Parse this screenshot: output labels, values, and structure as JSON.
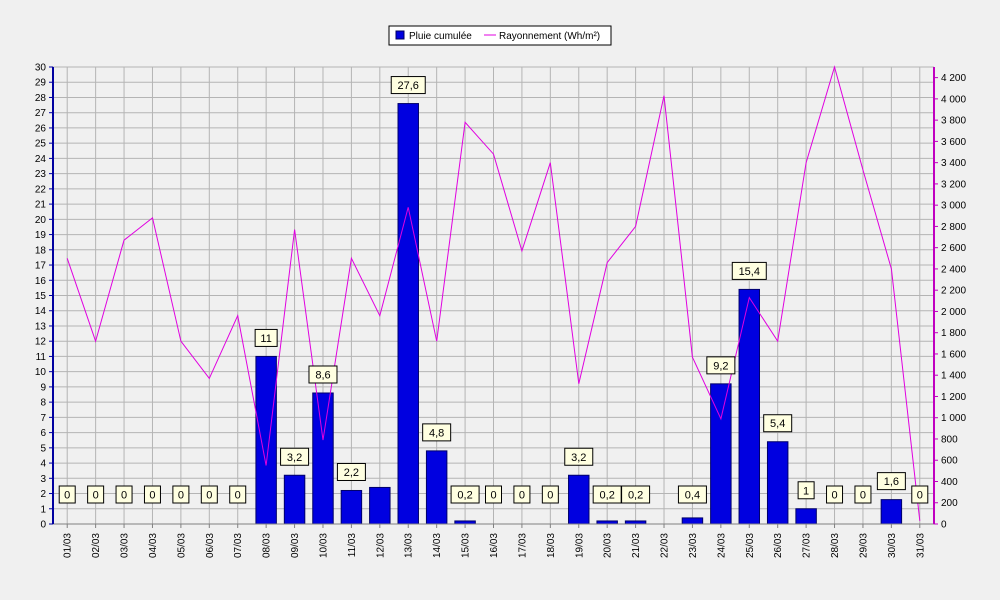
{
  "chart_data": {
    "type": "bar",
    "categories": [
      "01/03",
      "02/03",
      "03/03",
      "04/03",
      "05/03",
      "06/03",
      "07/03",
      "08/03",
      "09/03",
      "10/03",
      "11/03",
      "12/03",
      "13/03",
      "14/03",
      "15/03",
      "16/03",
      "17/03",
      "18/03",
      "19/03",
      "20/03",
      "21/03",
      "22/03",
      "23/03",
      "24/03",
      "25/03",
      "26/03",
      "27/03",
      "28/03",
      "29/03",
      "30/03",
      "31/03"
    ],
    "series": [
      {
        "name": "Pluie cumulée",
        "type": "bar",
        "axis": "left",
        "color": "#0000e0",
        "values": [
          0,
          0,
          0,
          0,
          0,
          0,
          0,
          11,
          3.2,
          8.6,
          2.2,
          2.4,
          27.6,
          4.8,
          0.2,
          0,
          0,
          0,
          3.2,
          0.2,
          0.2,
          0,
          0.4,
          9.2,
          15.4,
          5.4,
          1,
          0,
          0,
          1.6,
          0
        ],
        "labels": [
          "0",
          "0",
          "0",
          "0",
          "0",
          "0",
          "0",
          "11",
          "3,2",
          "8,6",
          "2,2",
          "",
          "27,6",
          "4,8",
          "0,2",
          "0",
          "0",
          "0",
          "3,2",
          "0,2",
          "0,2",
          "",
          "0,4",
          "9,2",
          "15,4",
          "5,4",
          "1",
          "0",
          "0",
          "1,6",
          "0"
        ]
      },
      {
        "name": "Rayonnement (Wh/m²)",
        "type": "line",
        "axis": "right",
        "color": "#e000e0",
        "values": [
          2500,
          1720,
          2670,
          2880,
          1720,
          1370,
          1960,
          550,
          2770,
          790,
          2500,
          1960,
          2980,
          1720,
          3780,
          3480,
          2570,
          3400,
          1320,
          2460,
          2800,
          4030,
          1570,
          990,
          2130,
          1720,
          3400,
          4300,
          3330,
          2400,
          30
        ]
      }
    ],
    "y_left": {
      "min": 0,
      "max": 30,
      "tick_labels": [
        "0",
        "1",
        "2",
        "3",
        "4",
        "5",
        "6",
        "7",
        "8",
        "9",
        "10",
        "11",
        "12",
        "13",
        "14",
        "15",
        "16",
        "17",
        "18",
        "19",
        "20",
        "21",
        "22",
        "23",
        "24",
        "25",
        "26",
        "27",
        "28",
        "29",
        "30"
      ]
    },
    "y_right": {
      "min": 0,
      "max": 4300,
      "tick_labels": [
        "0",
        "200",
        "400",
        "600",
        "800",
        "1 000",
        "1 200",
        "1 400",
        "1 600",
        "1 800",
        "2 000",
        "2 200",
        "2 400",
        "2 600",
        "2 800",
        "3 000",
        "3 200",
        "3 400",
        "3 600",
        "3 800",
        "4 000",
        "4 200"
      ]
    },
    "grid": true,
    "legend_position": "top-center"
  }
}
